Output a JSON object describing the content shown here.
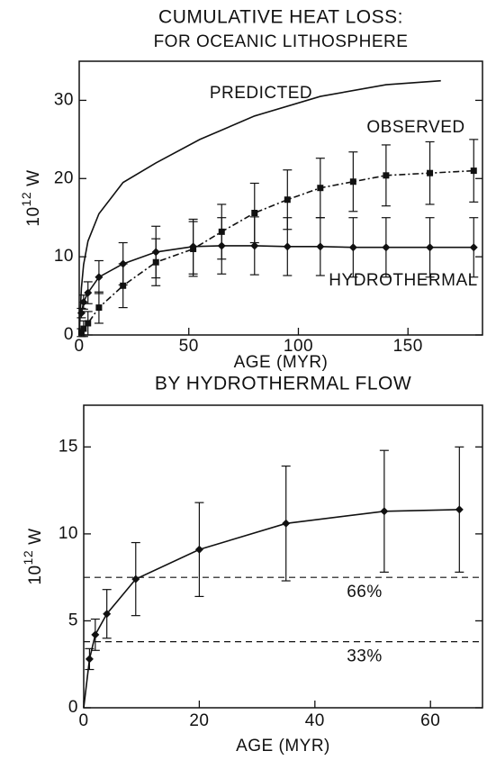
{
  "chart_data": [
    {
      "type": "line",
      "title": "CUMULATIVE HEAT LOSS:",
      "subtitle": "FOR OCEANIC LITHOSPHERE",
      "xlabel": "AGE (MYR)",
      "ylabel": {
        "base": "10",
        "exponent": "12",
        "unit": "W"
      },
      "xlim": [
        0,
        184
      ],
      "xticks": [
        0,
        50,
        100,
        150
      ],
      "ylim": [
        0,
        35
      ],
      "yticks": [
        0,
        10,
        20,
        30
      ],
      "series": [
        {
          "name": "PREDICTED",
          "color": "#111",
          "style": "solid",
          "marker": "none",
          "x": [
            0,
            1,
            2,
            4,
            9,
            20,
            35,
            55,
            80,
            110,
            140,
            165
          ],
          "values": [
            0,
            6,
            9,
            12,
            15.5,
            19.5,
            22,
            25,
            28,
            30.5,
            32,
            32.5
          ]
        },
        {
          "name": "OBSERVED",
          "color": "#111",
          "style": "dashdot",
          "marker": "square",
          "x": [
            1,
            2,
            4,
            9,
            20,
            35,
            52,
            65,
            80,
            95,
            110,
            125,
            140,
            160,
            180
          ],
          "values": [
            0.3,
            0.8,
            1.5,
            3.5,
            6.3,
            9.3,
            11.0,
            13.2,
            15.6,
            17.3,
            18.8,
            19.6,
            20.4,
            20.7,
            21.0
          ],
          "errors": [
            0.5,
            1,
            1.5,
            2,
            2.8,
            3,
            3.5,
            3.5,
            3.8,
            3.8,
            3.8,
            3.8,
            3.9,
            4,
            4
          ]
        },
        {
          "name": "HYDROTHERMAL",
          "color": "#111",
          "style": "solid",
          "marker": "diamond",
          "x": [
            1,
            2,
            4,
            9,
            20,
            35,
            52,
            65,
            80,
            95,
            110,
            125,
            140,
            160,
            180
          ],
          "values": [
            2.8,
            4.2,
            5.4,
            7.4,
            9.1,
            10.6,
            11.3,
            11.4,
            11.4,
            11.3,
            11.3,
            11.2,
            11.2,
            11.2,
            11.2
          ],
          "errors": [
            0.6,
            0.9,
            1.4,
            2.1,
            2.7,
            3.3,
            3.5,
            3.6,
            3.7,
            3.7,
            3.7,
            3.8,
            3.8,
            3.8,
            3.8
          ]
        }
      ]
    },
    {
      "type": "line",
      "title": "BY HYDROTHERMAL FLOW",
      "xlabel": "AGE (MYR)",
      "ylabel": {
        "base": "10",
        "exponent": "12",
        "unit": "W"
      },
      "xlim": [
        0,
        69
      ],
      "xticks": [
        0,
        20,
        40,
        60
      ],
      "ylim": [
        0,
        17.4
      ],
      "yticks": [
        0,
        5,
        10,
        15
      ],
      "series": [
        {
          "color": "#111",
          "style": "solid",
          "marker": "diamond",
          "x": [
            0,
            1,
            2,
            4,
            9,
            20,
            35,
            52,
            65
          ],
          "values": [
            0,
            2.8,
            4.2,
            5.4,
            7.4,
            9.1,
            10.6,
            11.3,
            11.4
          ],
          "errors": [
            null,
            0.6,
            0.9,
            1.4,
            2.1,
            2.7,
            3.3,
            3.5,
            3.6
          ]
        }
      ],
      "reference_lines": [
        {
          "value": 7.5,
          "label": "66%"
        },
        {
          "value": 3.8,
          "label": "33%"
        }
      ]
    }
  ]
}
